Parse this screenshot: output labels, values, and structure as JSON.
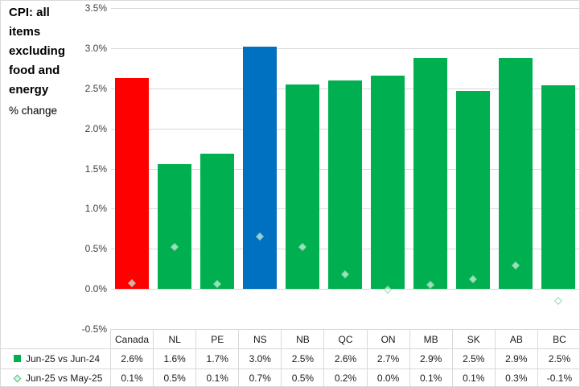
{
  "title": "CPI: all items excluding food and energy",
  "subtitle": "% change",
  "chart_data": {
    "type": "bar",
    "title": "CPI: all items excluding food and energy",
    "ylabel": "% change",
    "categories": [
      "Canada",
      "NL",
      "PE",
      "NS",
      "NB",
      "QC",
      "ON",
      "MB",
      "SK",
      "AB",
      "BC"
    ],
    "series": [
      {
        "name": "Jun-25 vs Jun-24",
        "type": "bar",
        "marker": "square",
        "values": [
          2.6,
          1.6,
          1.7,
          3.0,
          2.5,
          2.6,
          2.7,
          2.9,
          2.5,
          2.9,
          2.5
        ],
        "labels": [
          "2.6%",
          "1.6%",
          "1.7%",
          "3.0%",
          "2.5%",
          "2.6%",
          "2.7%",
          "2.9%",
          "2.5%",
          "2.9%",
          "2.5%"
        ],
        "values_plotted": [
          2.63,
          1.56,
          1.69,
          3.02,
          2.55,
          2.6,
          2.66,
          2.88,
          2.47,
          2.88,
          2.54
        ]
      },
      {
        "name": "Jun-25 vs May-25",
        "type": "scatter",
        "marker": "diamond",
        "values": [
          0.1,
          0.5,
          0.1,
          0.7,
          0.5,
          0.2,
          0.0,
          0.1,
          0.1,
          0.3,
          -0.1
        ],
        "labels": [
          "0.1%",
          "0.5%",
          "0.1%",
          "0.7%",
          "0.5%",
          "0.2%",
          "0.0%",
          "0.1%",
          "0.1%",
          "0.3%",
          "-0.1%"
        ],
        "values_plotted": [
          0.07,
          0.52,
          0.06,
          0.65,
          0.52,
          0.18,
          -0.01,
          0.05,
          0.12,
          0.29,
          -0.15
        ]
      }
    ],
    "ylim": [
      -0.5,
      3.5
    ],
    "ytick_labels": [
      "3.5%",
      "3.0%",
      "2.5%",
      "2.0%",
      "1.5%",
      "1.0%",
      "0.5%",
      "0.0%",
      "-0.5%"
    ],
    "grid": true,
    "legend_position": "bottom-table",
    "colors": {
      "bar_default": "#00B050",
      "bar_canada": "#FF0000",
      "bar_ns": "#0070C0",
      "gridline": "#d9d9d9",
      "marker_fill": "rgba(255,255,255,0.62)",
      "marker_border": "rgba(120,210,160,0.8)"
    },
    "bar_color_overrides": {
      "0": "#FF0000",
      "3": "#0070C0"
    }
  }
}
